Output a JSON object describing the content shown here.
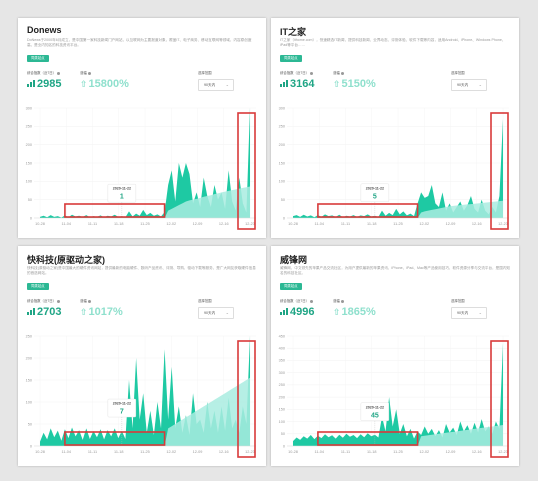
{
  "colors": {
    "accent": "#1fa585",
    "fill_main": "#1ec9a3",
    "fill_light": "#a9ece0",
    "highlight_red": "#d83a3a",
    "grid": "#eeeeee"
  },
  "panels": [
    {
      "title": "Donews",
      "desc": "DoNews于2000年6月成立，是中国第一家科技新闻门户网站，以互联网为主要报道对象，覆盖IT、电子商务、移动互联网等领域，内容原创度高，是业内知名的科技资讯平台。",
      "tag": "同类站点",
      "index_label": "综合指数（近7日）",
      "growth_label": "涨幅",
      "index_value": "2985",
      "growth_value": "15800%",
      "range_label": "选择范围",
      "range_value": "90天内",
      "tooltip": {
        "date": "2020-11-22",
        "value": "1"
      }
    },
    {
      "title": "IT之家",
      "desc": "IT之家（ithome.com），快速精选IT新闻，提供科技新闻、业界动态、评测体验、软件下载等内容，适用Android、iPhone、Windows Phone、iPad等平台……",
      "tag": "同类站点",
      "index_label": "综合指数（近7日）",
      "growth_label": "涨幅",
      "index_value": "3164",
      "growth_value": "5150%",
      "range_label": "选择范围",
      "range_value": "90天内",
      "tooltip": {
        "date": "2020-11-22",
        "value": "5"
      }
    },
    {
      "title": "快科技(原驱动之家)",
      "desc": "快科技(原驱动之家)是中国最大的硬件资讯网站，提供最新的电脑硬件、数码产品资讯、评测、导购、驱动下载等服务，是广大网友获取硬件信息的首选网站。",
      "tag": "同类站点",
      "index_label": "综合指数（近7日）",
      "growth_label": "涨幅",
      "index_value": "2703",
      "growth_value": "1017%",
      "range_label": "选择范围",
      "range_value": "90天内",
      "tooltip": {
        "date": "2020-11-22",
        "value": "7"
      }
    },
    {
      "title": "威锋网",
      "desc": "威锋网，中文领先的苹果产品交流社区，为用户提供最新的苹果资讯、iPhone、iPad、Mac等产品使用技巧、软件资源分享与交流平台，是国内知名的科技社区。",
      "tag": "同类站点",
      "index_label": "综合指数（近7日）",
      "growth_label": "涨幅",
      "index_value": "4996",
      "growth_value": "1865%",
      "range_label": "选择范围",
      "range_value": "90天内",
      "tooltip": {
        "date": "2020-11-22",
        "value": "45"
      }
    }
  ],
  "chart_data": [
    {
      "type": "area",
      "title": "Donews",
      "x_tick_labels": [
        "10-28",
        "11-04",
        "11-11",
        "11-18",
        "11-25",
        "12-02",
        "12-09",
        "12-16",
        "12-23"
      ],
      "y_ticks": [
        0,
        50,
        100,
        150,
        200,
        250,
        300
      ],
      "ylim": [
        0,
        300
      ],
      "series": [
        {
          "values": [
            3,
            6,
            2,
            8,
            3,
            5,
            1,
            7,
            2,
            9,
            4,
            6,
            3,
            8,
            2,
            5,
            3,
            7,
            2,
            6,
            4,
            9,
            3,
            5,
            2,
            18,
            4,
            12,
            6,
            22,
            8,
            14,
            6,
            10,
            4,
            16,
            90,
            130,
            45,
            150,
            110,
            150,
            120,
            40,
            70,
            30,
            110,
            60,
            30,
            90,
            50,
            70,
            25,
            130,
            45,
            20,
            110,
            40,
            15,
            300
          ]
        },
        {
          "values": [
            0,
            0,
            0,
            0,
            0,
            0,
            0,
            0,
            0,
            0,
            0,
            0,
            0,
            0,
            0,
            0,
            0,
            0,
            0,
            0,
            0,
            0,
            0,
            0,
            0,
            0,
            0,
            0,
            0,
            0,
            0,
            0,
            0,
            0,
            0,
            0,
            20,
            25,
            30,
            35,
            40,
            45,
            48,
            50,
            52,
            55,
            58,
            60,
            62,
            65,
            67,
            70,
            72,
            74,
            76,
            78,
            80,
            82,
            84,
            86
          ]
        }
      ]
    },
    {
      "type": "area",
      "title": "IT之家",
      "x_tick_labels": [
        "10-28",
        "11-04",
        "11-11",
        "11-18",
        "11-25",
        "12-02",
        "12-09",
        "12-16",
        "12-23"
      ],
      "y_ticks": [
        0,
        50,
        100,
        150,
        200,
        250,
        300
      ],
      "ylim": [
        0,
        300
      ],
      "series": [
        {
          "values": [
            5,
            8,
            3,
            9,
            4,
            7,
            2,
            8,
            3,
            10,
            5,
            7,
            3,
            9,
            2,
            6,
            4,
            8,
            3,
            7,
            5,
            10,
            4,
            6,
            3,
            20,
            6,
            14,
            8,
            25,
            10,
            18,
            7,
            12,
            5,
            40,
            70,
            55,
            60,
            90,
            40,
            30,
            70,
            20,
            40,
            15,
            30,
            45,
            20,
            35,
            60,
            25,
            15,
            50,
            20,
            10,
            30,
            15,
            60,
            270
          ]
        },
        {
          "values": [
            0,
            0,
            0,
            0,
            0,
            0,
            0,
            0,
            0,
            0,
            0,
            0,
            0,
            0,
            0,
            0,
            0,
            0,
            0,
            0,
            0,
            0,
            0,
            0,
            0,
            0,
            0,
            0,
            0,
            0,
            0,
            0,
            0,
            0,
            0,
            0,
            15,
            18,
            20,
            22,
            24,
            26,
            28,
            30,
            32,
            33,
            34,
            35,
            36,
            37,
            38,
            39,
            40,
            41,
            42,
            43,
            44,
            45,
            46,
            47
          ]
        }
      ]
    },
    {
      "type": "area",
      "title": "快科技(原驱动之家)",
      "x_tick_labels": [
        "10-28",
        "11-04",
        "11-11",
        "11-18",
        "11-25",
        "12-02",
        "12-09",
        "12-16",
        "12-23"
      ],
      "y_ticks": [
        0,
        50,
        100,
        150,
        200,
        250
      ],
      "ylim": [
        0,
        250
      ],
      "series": [
        {
          "values": [
            10,
            30,
            15,
            40,
            20,
            35,
            12,
            38,
            18,
            42,
            22,
            36,
            14,
            40,
            16,
            34,
            20,
            38,
            15,
            36,
            22,
            40,
            18,
            34,
            16,
            150,
            40,
            200,
            60,
            120,
            30,
            80,
            25,
            100,
            40,
            220,
            60,
            180,
            40,
            90,
            30,
            70,
            25,
            120,
            50,
            60,
            30,
            100,
            40,
            80,
            30,
            90,
            35,
            110,
            40,
            60,
            30,
            90,
            50,
            250
          ]
        },
        {
          "values": [
            0,
            0,
            0,
            0,
            0,
            0,
            0,
            0,
            0,
            0,
            0,
            0,
            0,
            0,
            0,
            0,
            0,
            0,
            0,
            0,
            0,
            0,
            0,
            0,
            0,
            0,
            0,
            0,
            0,
            0,
            0,
            0,
            0,
            0,
            0,
            0,
            40,
            45,
            50,
            55,
            60,
            65,
            70,
            75,
            80,
            85,
            90,
            95,
            100,
            105,
            110,
            115,
            120,
            125,
            130,
            135,
            140,
            145,
            150,
            155
          ]
        }
      ]
    },
    {
      "type": "area",
      "title": "威锋网",
      "x_tick_labels": [
        "10-28",
        "11-04",
        "11-11",
        "11-18",
        "11-25",
        "12-02",
        "12-09",
        "12-16",
        "12-23"
      ],
      "y_ticks": [
        0,
        50,
        100,
        150,
        200,
        250,
        300,
        350,
        400,
        450
      ],
      "ylim": [
        0,
        450
      ],
      "series": [
        {
          "values": [
            20,
            35,
            25,
            40,
            30,
            45,
            28,
            42,
            32,
            48,
            36,
            44,
            30,
            46,
            34,
            50,
            38,
            45,
            32,
            48,
            36,
            52,
            40,
            46,
            35,
            120,
            60,
            200,
            80,
            150,
            50,
            90,
            40,
            70,
            30,
            60,
            45,
            80,
            50,
            70,
            40,
            65,
            35,
            90,
            55,
            75,
            45,
            100,
            60,
            85,
            50,
            95,
            55,
            110,
            60,
            80,
            50,
            100,
            70,
            420
          ]
        },
        {
          "values": [
            0,
            0,
            0,
            0,
            0,
            0,
            0,
            0,
            0,
            0,
            0,
            0,
            0,
            0,
            0,
            0,
            0,
            0,
            0,
            0,
            0,
            0,
            0,
            0,
            0,
            0,
            0,
            0,
            0,
            0,
            0,
            0,
            0,
            0,
            0,
            0,
            40,
            42,
            44,
            46,
            48,
            50,
            52,
            54,
            56,
            58,
            60,
            62,
            64,
            66,
            68,
            70,
            72,
            74,
            76,
            78,
            80,
            82,
            84,
            86
          ]
        }
      ]
    }
  ]
}
